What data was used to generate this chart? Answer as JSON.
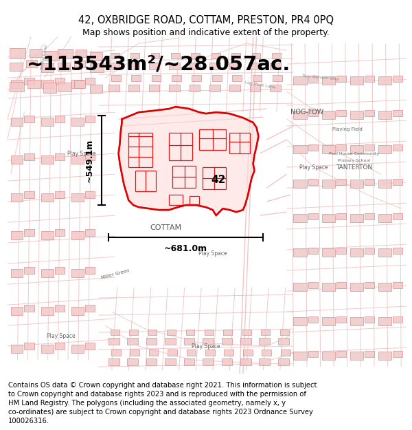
{
  "title_line1": "42, OXBRIDGE ROAD, COTTAM, PRESTON, PR4 0PQ",
  "title_line2": "Map shows position and indicative extent of the property.",
  "area_text": "~113543m²/~28.057ac.",
  "width_label": "~681.0m",
  "height_label": "~549.1m",
  "property_label": "42",
  "footer_text": "Contains OS data © Crown copyright and database right 2021. This information is subject to Crown copyright and database rights 2023 and is reproduced with the permission of HM Land Registry. The polygons (including the associated geometry, namely x, y co-ordinates) are subject to Crown copyright and database rights 2023 Ordnance Survey 100026316.",
  "bg_color": "#ffffff",
  "map_bg": "#ffffff",
  "road_color": "#e8b4b4",
  "bldg_fill": "#f2c8c8",
  "bldg_edge": "#d08080",
  "prop_fill": "#ffcccc",
  "prop_edge": "#dd0000",
  "text_color": "#444444",
  "black": "#000000",
  "title_fontsize": 10.5,
  "subtitle_fontsize": 9,
  "area_fontsize": 21,
  "footer_fontsize": 7.2
}
